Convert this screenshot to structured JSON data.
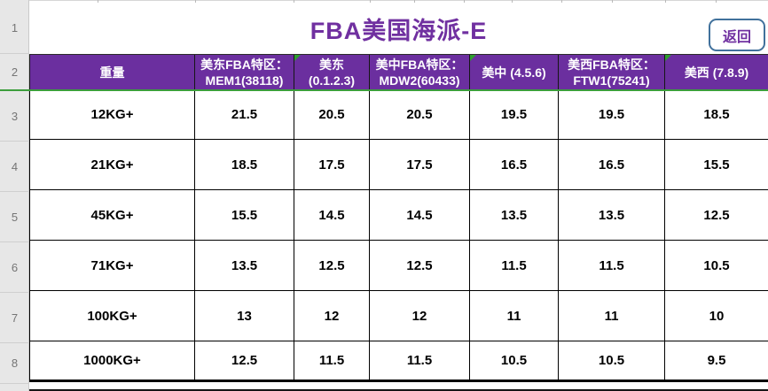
{
  "title": "FBA美国海派-E",
  "back_button": "返回",
  "row_numbers": [
    "1",
    "2",
    "3",
    "4",
    "5",
    "6",
    "7",
    "8"
  ],
  "colors": {
    "header_bg": "#6B2F9F",
    "title_text": "#7030A0",
    "freeze_line_green": "#3C9E3C",
    "error_triangle_green": "#2E9E2E",
    "back_button_border": "#41719C",
    "back_button_text": "#7030A0",
    "grid_border": "#000000"
  },
  "table": {
    "headers": [
      {
        "lines": [
          "重量"
        ],
        "flag": false
      },
      {
        "lines": [
          "美东FBA特区：",
          "MEM1(38118)"
        ],
        "flag": false
      },
      {
        "lines": [
          "美东",
          "(0.1.2.3)"
        ],
        "flag": true
      },
      {
        "lines": [
          "美中FBA特区：",
          "MDW2(60433)"
        ],
        "flag": false
      },
      {
        "lines": [
          "美中  (4.5.6)"
        ],
        "flag": true
      },
      {
        "lines": [
          "美西FBA特区：",
          "FTW1(75241)"
        ],
        "flag": false
      },
      {
        "lines": [
          "美西  (7.8.9)"
        ],
        "flag": true
      }
    ],
    "rows": [
      {
        "weight": "12KG+",
        "values": [
          "21.5",
          "20.5",
          "20.5",
          "19.5",
          "19.5",
          "18.5"
        ]
      },
      {
        "weight": "21KG+",
        "values": [
          "18.5",
          "17.5",
          "17.5",
          "16.5",
          "16.5",
          "15.5"
        ]
      },
      {
        "weight": "45KG+",
        "values": [
          "15.5",
          "14.5",
          "14.5",
          "13.5",
          "13.5",
          "12.5"
        ]
      },
      {
        "weight": "71KG+",
        "values": [
          "13.5",
          "12.5",
          "12.5",
          "11.5",
          "11.5",
          "10.5"
        ]
      },
      {
        "weight": "100KG+",
        "values": [
          "13",
          "12",
          "12",
          "11",
          "11",
          "10"
        ]
      },
      {
        "weight": "1000KG+",
        "values": [
          "12.5",
          "11.5",
          "11.5",
          "10.5",
          "10.5",
          "9.5"
        ]
      }
    ]
  }
}
